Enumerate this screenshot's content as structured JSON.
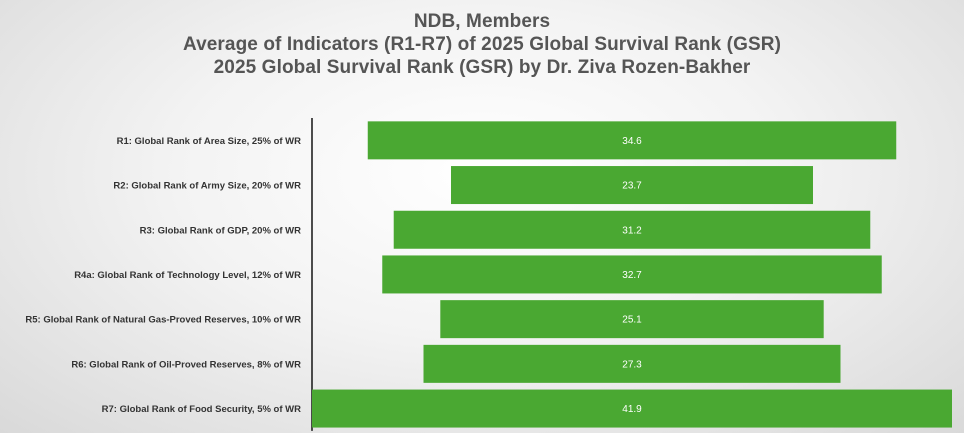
{
  "chart_data": {
    "type": "bar",
    "orientation": "horizontal",
    "layout": "centered-funnel",
    "title_lines": [
      "NDB,  Members",
      "Average of Indicators (R1-R7) of 2025 Global Survival Rank (GSR)",
      "2025 Global Survival Rank (GSR) by Dr. Ziva Rozen-Bakher"
    ],
    "categories": [
      "R1: Global Rank of Area Size, 25% of WR",
      "R2: Global Rank of Army Size, 20% of WR",
      "R3: Global Rank of GDP, 20% of WR",
      "R4a: Global Rank of Technology Level, 12% of WR",
      "R5: Global Rank of Natural Gas-Proved Reserves, 10% of WR",
      "R6: Global Rank of Oil-Proved Reserves, 8% of WR",
      "R7: Global Rank of Food Security, 5% of WR"
    ],
    "values": [
      34.6,
      23.7,
      31.2,
      32.7,
      25.1,
      27.3,
      41.9
    ],
    "value_labels": [
      "34.6",
      "23.7",
      "31.2",
      "32.7",
      "25.1",
      "27.3",
      "41.9"
    ],
    "bar_color": "#4aa832",
    "xlabel": "",
    "ylabel": "",
    "xlim": [
      0,
      41.9
    ],
    "grid": false,
    "legend": "none"
  }
}
